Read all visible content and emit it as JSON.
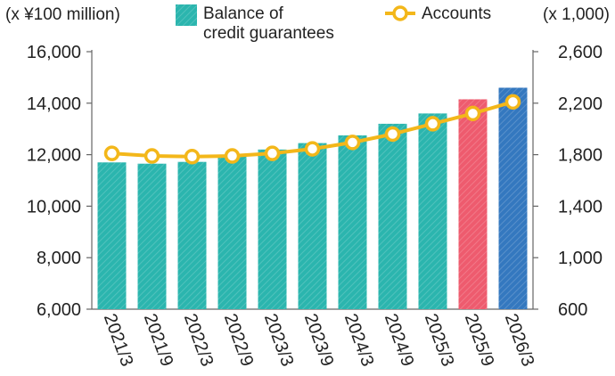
{
  "chart_data": {
    "type": "bar",
    "categories": [
      "2021/3",
      "2021/9",
      "2022/3",
      "2022/9",
      "2023/3",
      "2023/9",
      "2024/3",
      "2024/9",
      "2025/3",
      "2025/9",
      "2026/3"
    ],
    "left_axis_label": "(x ¥100 million)",
    "right_axis_label": "(x 1,000)",
    "left_ylim": [
      6000,
      16000
    ],
    "right_ylim": [
      600,
      2600
    ],
    "left_ticks": [
      "6,000",
      "8,000",
      "10,000",
      "12,000",
      "14,000",
      "16,000"
    ],
    "right_ticks": [
      "600",
      "1,000",
      "1,400",
      "1,800",
      "2,200",
      "2,600"
    ],
    "legend": {
      "bars_line1": "Balance of",
      "bars_line2": "credit guarantees",
      "line": "Accounts"
    },
    "series": [
      {
        "name": "Balance of credit guarantees",
        "kind": "bar",
        "axis": "left",
        "values": [
          11700,
          11650,
          11720,
          11950,
          12200,
          12450,
          12750,
          13200,
          13600,
          14150,
          14600
        ],
        "colors": [
          "#2bb5ae",
          "#2bb5ae",
          "#2bb5ae",
          "#2bb5ae",
          "#2bb5ae",
          "#2bb5ae",
          "#2bb5ae",
          "#2bb5ae",
          "#2bb5ae",
          "#ee5b6e",
          "#3478bf"
        ]
      },
      {
        "name": "Accounts",
        "kind": "line",
        "axis": "right",
        "values": [
          1810,
          1790,
          1785,
          1790,
          1810,
          1845,
          1895,
          1960,
          2040,
          2120,
          2210
        ],
        "color": "#f3b71a"
      }
    ],
    "grid": false,
    "legend_position": "top"
  }
}
